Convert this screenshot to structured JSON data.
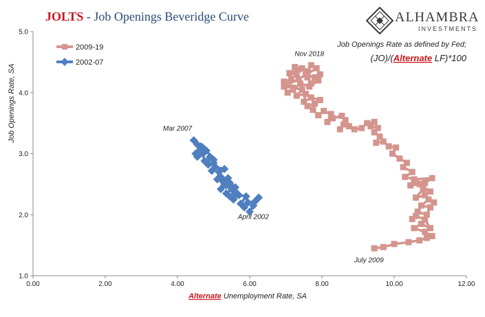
{
  "header": {
    "title_lead": "JOLTS",
    "title_rest": " - Job Openings Beveridge Curve"
  },
  "logo": {
    "name": "ALHAMBRA",
    "sub": "INVESTMENTS"
  },
  "note": {
    "line1": "Job Openings Rate as defined by Fed;",
    "line2_prefix": "(JO)/(",
    "line2_emph": "Alternate",
    "line2_suffix": " LF)*100"
  },
  "colors": {
    "series_2009_19": "#d4958e",
    "series_2002_07": "#4f7fbf",
    "title_red": "#c8161d",
    "title_blue": "#2a4a7a"
  },
  "chart_data": {
    "type": "scatter",
    "title": "JOLTS - Job Openings Beveridge Curve",
    "xlabel_emph": "Alternate",
    "xlabel_rest": " Unemployment Rate, SA",
    "ylabel": "Job Openings Rate, SA",
    "xlim": [
      0,
      12
    ],
    "ylim": [
      1.0,
      5.0
    ],
    "xticks": [
      "0.00",
      "2.00",
      "4.00",
      "6.00",
      "8.00",
      "10.00",
      "12.00"
    ],
    "yticks": [
      "1.0",
      "2.0",
      "3.0",
      "4.0",
      "5.0"
    ],
    "legend_position": "top-left",
    "series": [
      {
        "name": "2009-19",
        "marker": "square",
        "points": [
          [
            9.45,
            1.45
          ],
          [
            9.7,
            1.47
          ],
          [
            10.0,
            1.52
          ],
          [
            10.4,
            1.55
          ],
          [
            10.7,
            1.58
          ],
          [
            10.9,
            1.62
          ],
          [
            11.05,
            1.65
          ],
          [
            10.85,
            1.72
          ],
          [
            10.55,
            1.78
          ],
          [
            10.75,
            1.85
          ],
          [
            11.0,
            1.78
          ],
          [
            10.85,
            1.92
          ],
          [
            10.6,
            1.98
          ],
          [
            10.5,
            1.93
          ],
          [
            10.65,
            2.05
          ],
          [
            10.9,
            2.0
          ],
          [
            11.0,
            2.12
          ],
          [
            10.75,
            2.15
          ],
          [
            10.95,
            2.25
          ],
          [
            11.1,
            2.2
          ],
          [
            10.85,
            2.32
          ],
          [
            10.6,
            2.28
          ],
          [
            10.8,
            2.42
          ],
          [
            11.0,
            2.38
          ],
          [
            10.7,
            2.5
          ],
          [
            10.45,
            2.48
          ],
          [
            10.6,
            2.55
          ],
          [
            10.85,
            2.52
          ],
          [
            11.05,
            2.6
          ],
          [
            10.55,
            2.58
          ],
          [
            10.3,
            2.62
          ],
          [
            10.5,
            2.7
          ],
          [
            10.25,
            2.78
          ],
          [
            10.35,
            2.85
          ],
          [
            10.15,
            2.92
          ],
          [
            9.95,
            3.0
          ],
          [
            10.05,
            3.1
          ],
          [
            9.85,
            3.12
          ],
          [
            9.7,
            3.2
          ],
          [
            9.5,
            3.18
          ],
          [
            9.6,
            3.28
          ],
          [
            9.45,
            3.35
          ],
          [
            9.55,
            3.42
          ],
          [
            9.35,
            3.45
          ],
          [
            9.45,
            3.52
          ],
          [
            9.25,
            3.5
          ],
          [
            9.1,
            3.42
          ],
          [
            8.9,
            3.4
          ],
          [
            8.75,
            3.45
          ],
          [
            8.6,
            3.48
          ],
          [
            8.5,
            3.4
          ],
          [
            8.65,
            3.55
          ],
          [
            8.55,
            3.62
          ],
          [
            8.3,
            3.58
          ],
          [
            8.15,
            3.52
          ],
          [
            8.25,
            3.65
          ],
          [
            8.05,
            3.7
          ],
          [
            7.9,
            3.63
          ],
          [
            7.75,
            3.72
          ],
          [
            7.6,
            3.78
          ],
          [
            7.8,
            3.82
          ],
          [
            7.95,
            3.88
          ],
          [
            7.7,
            3.92
          ],
          [
            7.5,
            3.85
          ],
          [
            7.55,
            3.98
          ],
          [
            7.3,
            3.95
          ],
          [
            7.45,
            4.05
          ],
          [
            7.2,
            4.08
          ],
          [
            7.05,
            4.12
          ],
          [
            6.95,
            4.18
          ],
          [
            7.15,
            4.22
          ],
          [
            7.3,
            4.3
          ],
          [
            7.1,
            4.32
          ],
          [
            7.35,
            4.38
          ],
          [
            7.25,
            4.42
          ],
          [
            7.45,
            4.4
          ],
          [
            7.6,
            4.35
          ],
          [
            7.7,
            4.45
          ],
          [
            7.55,
            4.3
          ],
          [
            7.8,
            4.25
          ],
          [
            7.7,
            4.15
          ],
          [
            7.9,
            4.2
          ],
          [
            7.65,
            4.1
          ],
          [
            7.4,
            4.15
          ],
          [
            7.2,
            4.05
          ],
          [
            7.05,
            4.0
          ],
          [
            6.95,
            4.1
          ],
          [
            7.35,
            4.22
          ],
          [
            7.85,
            4.4
          ],
          [
            7.95,
            4.3
          ],
          [
            7.6,
            4.25
          ]
        ]
      },
      {
        "name": "2002-07",
        "marker": "diamond",
        "points": [
          [
            6.25,
            2.28
          ],
          [
            6.1,
            2.15
          ],
          [
            6.0,
            2.05
          ],
          [
            6.15,
            2.22
          ],
          [
            5.95,
            2.2
          ],
          [
            5.85,
            2.12
          ],
          [
            5.75,
            2.18
          ],
          [
            5.9,
            2.3
          ],
          [
            5.7,
            2.32
          ],
          [
            5.55,
            2.25
          ],
          [
            5.6,
            2.38
          ],
          [
            5.45,
            2.3
          ],
          [
            5.35,
            2.35
          ],
          [
            5.5,
            2.42
          ],
          [
            5.35,
            2.48
          ],
          [
            5.2,
            2.42
          ],
          [
            5.25,
            2.55
          ],
          [
            5.4,
            2.6
          ],
          [
            5.45,
            2.52
          ],
          [
            5.6,
            2.45
          ],
          [
            5.2,
            2.62
          ],
          [
            5.1,
            2.58
          ],
          [
            5.15,
            2.7
          ],
          [
            5.3,
            2.75
          ],
          [
            5.05,
            2.78
          ],
          [
            4.95,
            2.72
          ],
          [
            5.0,
            2.85
          ],
          [
            4.85,
            2.82
          ],
          [
            4.9,
            2.95
          ],
          [
            4.75,
            2.88
          ],
          [
            4.7,
            3.0
          ],
          [
            4.55,
            2.95
          ],
          [
            4.6,
            3.05
          ],
          [
            4.5,
            3.0
          ],
          [
            4.65,
            3.12
          ],
          [
            4.55,
            3.15
          ],
          [
            4.45,
            3.22
          ],
          [
            4.7,
            3.1
          ],
          [
            4.8,
            3.05
          ],
          [
            5.0,
            2.9
          ]
        ]
      }
    ],
    "annotations": [
      {
        "text": "Nov 2018",
        "x": 7.65,
        "y": 4.6
      },
      {
        "text": "Mar 2007",
        "x": 4.0,
        "y": 3.38
      },
      {
        "text": "April 2002",
        "x": 6.1,
        "y": 1.93
      },
      {
        "text": "July 2009",
        "x": 9.3,
        "y": 1.22
      }
    ]
  }
}
